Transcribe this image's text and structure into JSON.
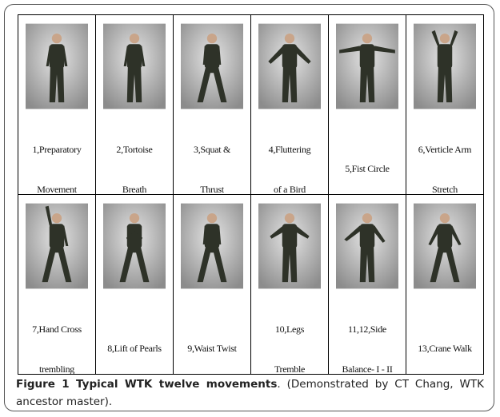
{
  "figure": {
    "cells": [
      [
        [
          "1,Preparatory",
          "Movement"
        ],
        [
          "2,Tortoise",
          "Breath"
        ],
        [
          "3,Squat &",
          "Thrust"
        ],
        [
          "4,Fluttering",
          "of a Bird"
        ],
        [
          "5,Fist Circle"
        ],
        [
          "6,Verticle Arm",
          "Stretch"
        ]
      ],
      [
        [
          "7,Hand Cross",
          "trembling"
        ],
        [
          "8,Lift of Pearls"
        ],
        [
          "9,Waist Twist"
        ],
        [
          "10,Legs",
          "Tremble"
        ],
        [
          "11,12,Side",
          "Balance- I - II"
        ],
        [
          "13,Crane Walk"
        ]
      ]
    ],
    "caption": {
      "label": "Figure 1 Typical WTK twelve movements",
      "text": ". (Demonstrated by CT Chang, WTK ancestor master)."
    }
  }
}
